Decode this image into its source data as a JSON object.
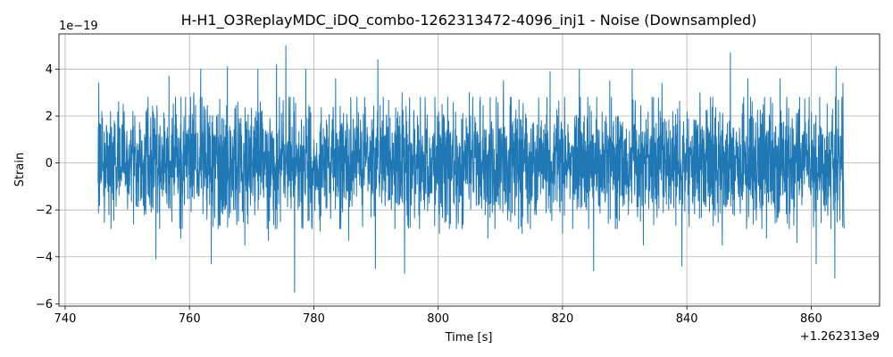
{
  "chart_data": {
    "type": "line",
    "title": "H-H1_O3ReplayMDC_iDQ_combo-1262313472-4096_inj1 - Noise (Downsampled)",
    "xlabel": "Time [s]",
    "ylabel": "Strain",
    "x_offset_label": "+1.262313e9",
    "y_exponent_label": "1e−19",
    "xlim": [
      739.0,
      871.0
    ],
    "ylim": [
      -6.1,
      5.5
    ],
    "x_ticks": [
      740,
      760,
      780,
      800,
      820,
      840,
      860
    ],
    "x_tick_labels": [
      "740",
      "760",
      "780",
      "800",
      "820",
      "840",
      "860"
    ],
    "y_ticks": [
      -6,
      -4,
      -2,
      0,
      2,
      4
    ],
    "y_tick_labels": [
      "−6",
      "−4",
      "−2",
      "0",
      "2",
      "4"
    ],
    "grid": true,
    "series": [
      {
        "color": "#1f77b4",
        "x_range": [
          745.3,
          865.3
        ],
        "typical_band": [
          -1.4,
          1.4
        ],
        "peak_values": [
          {
            "x": 745.4,
            "y": 3.4
          },
          {
            "x": 748.6,
            "y": 2.6
          },
          {
            "x": 751.0,
            "y": -2.6
          },
          {
            "x": 754.6,
            "y": -4.1
          },
          {
            "x": 756.7,
            "y": 3.7
          },
          {
            "x": 758.6,
            "y": -3.2
          },
          {
            "x": 760.7,
            "y": 3.0
          },
          {
            "x": 761.8,
            "y": 4.0
          },
          {
            "x": 763.5,
            "y": -4.3
          },
          {
            "x": 766.1,
            "y": 4.1
          },
          {
            "x": 768.9,
            "y": -3.5
          },
          {
            "x": 771.0,
            "y": 4.0
          },
          {
            "x": 772.7,
            "y": -3.3
          },
          {
            "x": 774.0,
            "y": 4.2
          },
          {
            "x": 775.5,
            "y": 5.0
          },
          {
            "x": 776.9,
            "y": -5.5
          },
          {
            "x": 778.7,
            "y": 4.0
          },
          {
            "x": 781.0,
            "y": -2.9
          },
          {
            "x": 783.5,
            "y": 3.6
          },
          {
            "x": 785.6,
            "y": -3.3
          },
          {
            "x": 789.9,
            "y": -4.5
          },
          {
            "x": 790.3,
            "y": 4.4
          },
          {
            "x": 794.2,
            "y": 3.0
          },
          {
            "x": 794.6,
            "y": -4.7
          },
          {
            "x": 797.9,
            "y": 2.8
          },
          {
            "x": 800.2,
            "y": -3.0
          },
          {
            "x": 805.0,
            "y": 3.0
          },
          {
            "x": 808.0,
            "y": -3.2
          },
          {
            "x": 810.5,
            "y": 3.5
          },
          {
            "x": 813.5,
            "y": -3.0
          },
          {
            "x": 818.0,
            "y": 3.9
          },
          {
            "x": 820.0,
            "y": -3.0
          },
          {
            "x": 822.7,
            "y": 4.0
          },
          {
            "x": 825.0,
            "y": -4.6
          },
          {
            "x": 827.6,
            "y": 3.5
          },
          {
            "x": 831.2,
            "y": 4.0
          },
          {
            "x": 833.0,
            "y": -3.5
          },
          {
            "x": 836.0,
            "y": 3.4
          },
          {
            "x": 839.2,
            "y": -4.4
          },
          {
            "x": 842.1,
            "y": 3.0
          },
          {
            "x": 845.7,
            "y": -3.5
          },
          {
            "x": 847.0,
            "y": 4.7
          },
          {
            "x": 849.8,
            "y": 3.6
          },
          {
            "x": 852.8,
            "y": -3.2
          },
          {
            "x": 855.0,
            "y": 3.6
          },
          {
            "x": 857.7,
            "y": -3.4
          },
          {
            "x": 860.8,
            "y": -4.3
          },
          {
            "x": 863.8,
            "y": -4.9
          },
          {
            "x": 864.0,
            "y": 4.1
          },
          {
            "x": 865.1,
            "y": 3.4
          }
        ]
      }
    ]
  }
}
